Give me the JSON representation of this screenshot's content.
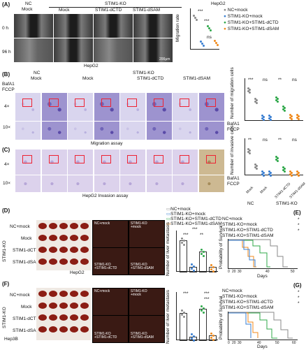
{
  "panels": {
    "A": "(A)",
    "B": "(B)",
    "C": "(C)",
    "D": "(D)",
    "E": "(E)",
    "F": "(F)",
    "G": "(G)"
  },
  "groups": {
    "nc": "NC",
    "mock": "Mock",
    "stim1ko": "STIM1-KO",
    "dctd": "STIM1-dCTD",
    "dsam": "STIM1-dSAM"
  },
  "a": {
    "row0": "0 h",
    "row96": "96 h",
    "caption": "HepG2",
    "scale": "200μm",
    "chart_title": "HepG2",
    "ylabel": "Migration rate",
    "legend": [
      "NC+mock",
      "STIM1-KO+mock",
      "STIM1-KO+STIM1-dCTD",
      "STIM1-KO+STIM1-dSAM"
    ],
    "sig": [
      "***",
      "***",
      "ns"
    ]
  },
  "b": {
    "bafa1": "BafA1",
    "fccp": "FCCP",
    "mag4": "4×",
    "mag10": "10×",
    "caption": "Migration assay",
    "scale500": "500μm",
    "scale200": "200μm",
    "ylabel": "Number of migration cells",
    "sig": [
      "***",
      "ns",
      "**",
      "ns"
    ]
  },
  "c": {
    "caption": "HepG2 Invasion assay",
    "ylabel": "Number of invasive cells",
    "sig": [
      "**",
      "ns",
      "**",
      "ns"
    ],
    "xcats": [
      "Mock",
      "Mock",
      "STIM1-dCTD",
      "STIM1-dSAM"
    ],
    "xgroups": [
      "NC",
      "STIM1-KO"
    ]
  },
  "d": {
    "rows": [
      "NC+mock",
      "Mock",
      "STIM1-dCTD",
      "STIM1-dSAM"
    ],
    "vlabel": "STIM1-KO",
    "cell": "HepG2",
    "img_labels": [
      "NC+mock",
      "STIM1-KO\n+mock",
      "STIM1-KO\n+STIM1-dCTD",
      "STIM1-KO\n+STIM1-dSAM"
    ],
    "legend": [
      "NC+mock",
      "STIM1-KO+mock",
      "STIM1-KO+STIM1-dCTD",
      "STIM1-KO+STIM1-dSAM"
    ],
    "ylabel": "Number of liver metastasis",
    "sig": [
      "***",
      "***",
      "**"
    ]
  },
  "e": {
    "legend": [
      "NC+mock",
      "STIM1-KO+mock",
      "STIM1-KO+STIM1-dCTD",
      "STIM1-KO+STIM1-dSAM"
    ],
    "ylabel": "Probability of Survival",
    "xlabel": "Days",
    "sig": [
      "*",
      "*",
      "*"
    ],
    "xticks": [
      "0",
      "20",
      "30",
      "40",
      "50"
    ]
  },
  "f": {
    "rows": [
      "NC+mock",
      "Mock",
      "STIM1-dCTD",
      "STIM1-dSAM"
    ],
    "vlabel": "STIM1-KO",
    "cell": "Hep3B",
    "ylabel": "Number of liver metastasis",
    "sig": [
      "***",
      "***",
      "***"
    ]
  },
  "g": {
    "legend": [
      "NC+mock",
      "STIM1-KO+mock",
      "STIM1-KO+STIM1-dCTD",
      "STIM1-KO+STIM1-dSAM"
    ],
    "ylabel": "Probability of Survival",
    "xlabel": "Days",
    "sig": [
      "*",
      "*",
      "*"
    ],
    "xticks": [
      "0",
      "20",
      "30",
      "40",
      "50",
      "60"
    ]
  },
  "colors": {
    "nc": "#8a8a8a",
    "mock": "#3a7fd1",
    "dctd": "#2fa84a",
    "dsam": "#f08a1c"
  },
  "chart_data": [
    {
      "type": "scatter",
      "title": "HepG2",
      "ylabel": "Migration rate",
      "categories": [
        "NC+mock",
        "STIM1-KO+mock",
        "STIM1-KO+STIM1-dCTD",
        "STIM1-KO+STIM1-dSAM"
      ],
      "values": [
        0.72,
        0.14,
        0.48,
        0.15
      ]
    },
    {
      "type": "bar",
      "ylabel": "Number of liver metastasis",
      "categories": [
        "NC+mock",
        "STIM1-KO+mock",
        "STIM1-KO+STIM1-dCTD",
        "STIM1-KO+STIM1-dSAM"
      ],
      "values": [
        55,
        8,
        35,
        7
      ]
    }
  ]
}
